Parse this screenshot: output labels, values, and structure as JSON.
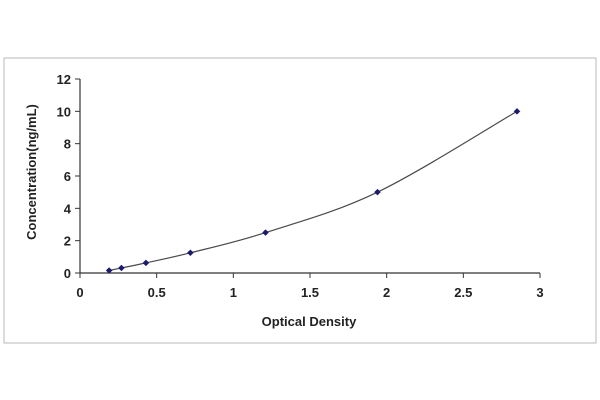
{
  "chart_data": {
    "type": "scatter",
    "title": "",
    "xlabel": "Optical Density",
    "ylabel": "Concentration(ng/mL)",
    "xlim": [
      0,
      3
    ],
    "ylim": [
      0,
      12
    ],
    "x_ticks": [
      0,
      0.5,
      1,
      1.5,
      2,
      2.5,
      3
    ],
    "x_tick_labels": [
      "0",
      "0.5",
      "1",
      "1.5",
      "2",
      "2.5",
      "3"
    ],
    "y_ticks": [
      0,
      2,
      4,
      6,
      8,
      10,
      12
    ],
    "y_tick_labels": [
      "0",
      "2",
      "4",
      "6",
      "8",
      "10",
      "12"
    ],
    "grid": false,
    "legend": "none",
    "series": [
      {
        "points": [
          {
            "x": 0.19,
            "y": 0.156
          },
          {
            "x": 0.27,
            "y": 0.313
          },
          {
            "x": 0.43,
            "y": 0.625
          },
          {
            "x": 0.72,
            "y": 1.25
          },
          {
            "x": 1.21,
            "y": 2.5
          },
          {
            "x": 1.94,
            "y": 5
          },
          {
            "x": 2.85,
            "y": 10
          }
        ],
        "marker_color": "#1a1a6e",
        "fit_curve_color": "#4a4a4a"
      }
    ]
  }
}
